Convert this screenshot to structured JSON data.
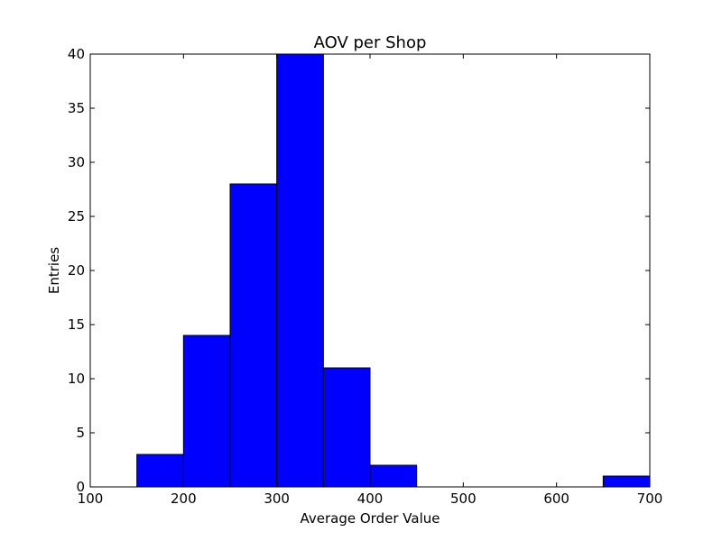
{
  "chart_data": {
    "type": "bar",
    "title": "AOV per Shop",
    "xlabel": "Average Order Value",
    "ylabel": "Entries",
    "xlim": [
      100,
      700
    ],
    "ylim": [
      0,
      40
    ],
    "xticks": [
      100,
      200,
      300,
      400,
      500,
      600,
      700
    ],
    "yticks": [
      0,
      5,
      10,
      15,
      20,
      25,
      30,
      35,
      40
    ],
    "bins": [
      {
        "start": 100,
        "end": 150,
        "count": 0
      },
      {
        "start": 150,
        "end": 200,
        "count": 3
      },
      {
        "start": 200,
        "end": 250,
        "count": 14
      },
      {
        "start": 250,
        "end": 300,
        "count": 28
      },
      {
        "start": 300,
        "end": 350,
        "count": 40
      },
      {
        "start": 350,
        "end": 400,
        "count": 11
      },
      {
        "start": 400,
        "end": 450,
        "count": 2
      },
      {
        "start": 450,
        "end": 500,
        "count": 0
      },
      {
        "start": 500,
        "end": 550,
        "count": 0
      },
      {
        "start": 550,
        "end": 600,
        "count": 0
      },
      {
        "start": 600,
        "end": 650,
        "count": 0
      },
      {
        "start": 650,
        "end": 700,
        "count": 1
      }
    ],
    "bar_color": "#0000ff",
    "edge_color": "#000000",
    "grid": false
  }
}
